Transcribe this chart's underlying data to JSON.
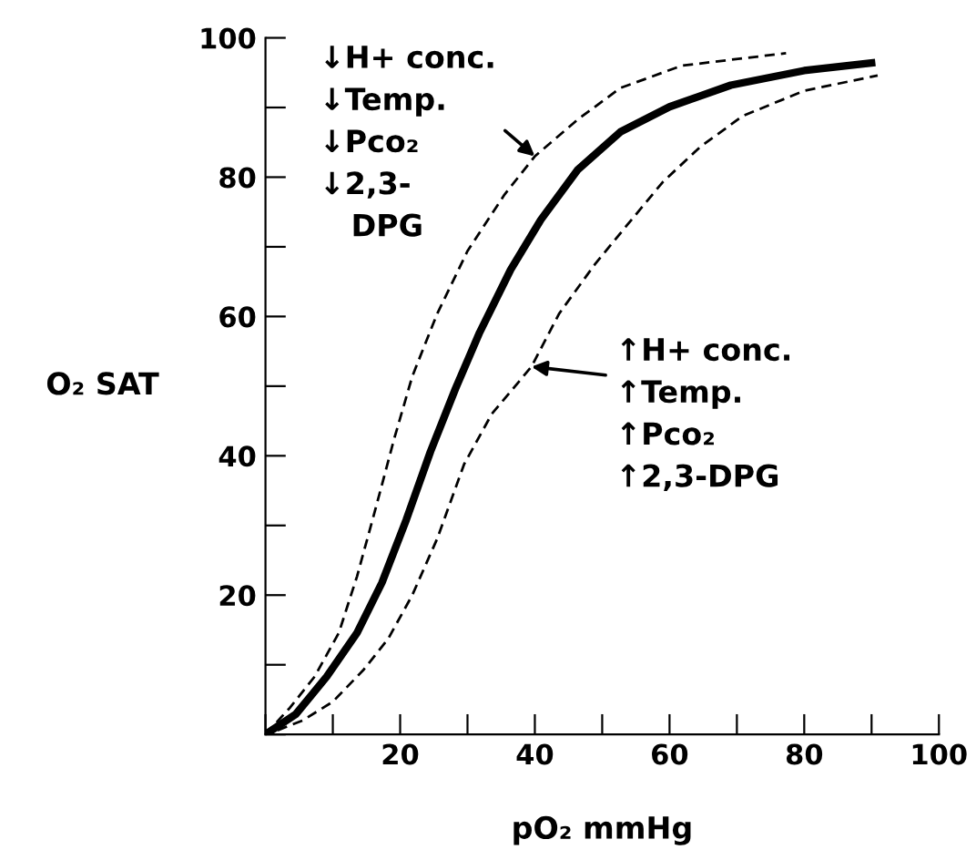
{
  "chart_data": {
    "type": "line",
    "xlabel": "pO₂ mmHg",
    "ylabel": "O₂ SAT",
    "xlim": [
      0,
      100
    ],
    "ylim": [
      0,
      100
    ],
    "xticks": [
      {
        "value": 0,
        "label": null
      },
      {
        "value": 10,
        "label": null
      },
      20,
      {
        "value": 30,
        "label": null
      },
      40,
      {
        "value": 50,
        "label": null
      },
      60,
      {
        "value": 70,
        "label": null
      },
      80,
      {
        "value": 90,
        "label": null
      },
      100
    ],
    "yticks": [
      {
        "value": 0,
        "label": null
      },
      {
        "value": 10,
        "label": null
      },
      20,
      {
        "value": 30,
        "label": null
      },
      40,
      {
        "value": 50,
        "label": null
      },
      60,
      {
        "value": 70,
        "label": null
      },
      80,
      {
        "value": 90,
        "label": null
      },
      100
    ],
    "grid": false,
    "legend": false,
    "marker": "none",
    "series": [
      {
        "color": "#000000",
        "line_style": "dashed",
        "x": [
          0,
          3.6,
          7.3,
          10.9,
          13.6,
          16.4,
          19.1,
          21.8,
          25.5,
          30,
          35.5,
          40,
          46.4,
          52.7,
          61.8,
          77.3
        ],
        "values": [
          0,
          3.8,
          8.3,
          14.6,
          22.7,
          32.6,
          42.4,
          51.4,
          60.4,
          69.4,
          77.5,
          83,
          88.3,
          92.8,
          96,
          97.8
        ]
      },
      {
        "color": "#000000",
        "line_style": "solid",
        "x": [
          0,
          4.5,
          9.1,
          13.6,
          17.3,
          20.9,
          24.5,
          28.2,
          31.8,
          36.4,
          40.9,
          46.4,
          52.7,
          60,
          69.1,
          80,
          90
        ],
        "values": [
          0,
          2.9,
          8.3,
          14.6,
          21.8,
          30.8,
          40.6,
          49.6,
          57.7,
          66.7,
          73.9,
          81.1,
          86.5,
          90.1,
          93.2,
          95.3,
          96.4
        ]
      },
      {
        "color": "#000000",
        "line_style": "dashed",
        "x": [
          1.8,
          5.5,
          10,
          14.5,
          18.2,
          21.8,
          25.5,
          29.5,
          33.6,
          39.5,
          43.6,
          49,
          53.6,
          59,
          64.5,
          70.9,
          80,
          90.9
        ],
        "values": [
          0.6,
          2,
          4.7,
          9.2,
          13.7,
          20,
          28.1,
          38.8,
          46,
          52.8,
          60.4,
          67.6,
          73,
          79.3,
          84.3,
          88.8,
          92.4,
          94.6
        ]
      }
    ],
    "annotations": [
      {
        "text": "↓H+ conc.\n↓Temp.\n↓Pco₂\n↓2,3-\n   DPG",
        "x": 40,
        "y": 83
      },
      {
        "text": "↑H+ conc.\n↑Temp.\n↑Pco₂\n↑2,3-DPG",
        "x": 39.5,
        "y": 52.8
      }
    ]
  }
}
